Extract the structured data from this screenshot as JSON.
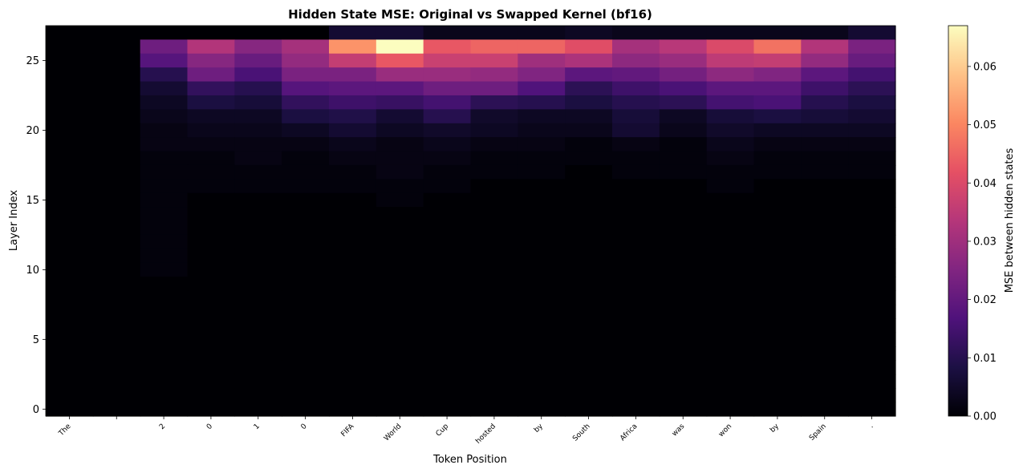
{
  "chart_data": {
    "type": "heatmap",
    "title": "Hidden State MSE: Original vs Swapped Kernel (bf16)",
    "xlabel": "Token Position",
    "ylabel": "Layer Index",
    "x_tokens": [
      "The",
      " ",
      "2",
      "0",
      "1",
      "0",
      "FIFA",
      "World",
      "Cup",
      "hosted",
      "by",
      "South",
      "Africa",
      "was",
      "won",
      "by",
      "Spain",
      "."
    ],
    "y_ticks": [
      "0",
      "5",
      "10",
      "15",
      "20",
      "25"
    ],
    "n_layers": 28,
    "colormap": "magma",
    "colorbar": {
      "label": "MSE between hidden states",
      "vmin": 0.0,
      "vmax": 0.067,
      "ticks": [
        "0.00",
        "0.01",
        "0.02",
        "0.03",
        "0.04",
        "0.05",
        "0.06"
      ]
    },
    "values_by_layer_top_down": [
      [
        0.0,
        0.0,
        0.0,
        0.0,
        0.0,
        0.0,
        0.006,
        0.006,
        0.003,
        0.003,
        0.003,
        0.004,
        0.003,
        0.003,
        0.003,
        0.003,
        0.003,
        0.006
      ],
      [
        0.0,
        0.0,
        0.022,
        0.033,
        0.026,
        0.031,
        0.052,
        0.067,
        0.043,
        0.045,
        0.045,
        0.041,
        0.031,
        0.034,
        0.04,
        0.047,
        0.033,
        0.024
      ],
      [
        0.0,
        0.0,
        0.018,
        0.026,
        0.021,
        0.028,
        0.036,
        0.043,
        0.037,
        0.037,
        0.03,
        0.032,
        0.027,
        0.029,
        0.035,
        0.036,
        0.028,
        0.021
      ],
      [
        0.0,
        0.0,
        0.01,
        0.022,
        0.016,
        0.024,
        0.024,
        0.029,
        0.029,
        0.028,
        0.025,
        0.019,
        0.02,
        0.023,
        0.027,
        0.025,
        0.019,
        0.015
      ],
      [
        0.0,
        0.0,
        0.006,
        0.012,
        0.01,
        0.018,
        0.019,
        0.019,
        0.022,
        0.022,
        0.017,
        0.011,
        0.014,
        0.016,
        0.019,
        0.019,
        0.014,
        0.011
      ],
      [
        0.0,
        0.0,
        0.004,
        0.008,
        0.007,
        0.012,
        0.014,
        0.013,
        0.015,
        0.011,
        0.01,
        0.008,
        0.01,
        0.011,
        0.015,
        0.016,
        0.01,
        0.008
      ],
      [
        0.0,
        0.0,
        0.003,
        0.004,
        0.004,
        0.008,
        0.009,
        0.006,
        0.01,
        0.005,
        0.004,
        0.004,
        0.007,
        0.004,
        0.007,
        0.008,
        0.007,
        0.006
      ],
      [
        0.0,
        0.0,
        0.002,
        0.003,
        0.003,
        0.004,
        0.006,
        0.004,
        0.005,
        0.004,
        0.003,
        0.003,
        0.006,
        0.003,
        0.005,
        0.004,
        0.004,
        0.004
      ],
      [
        0.0,
        0.0,
        0.002,
        0.002,
        0.002,
        0.002,
        0.003,
        0.002,
        0.003,
        0.002,
        0.002,
        0.001,
        0.002,
        0.001,
        0.003,
        0.002,
        0.002,
        0.002
      ],
      [
        0.0,
        0.0,
        0.001,
        0.001,
        0.002,
        0.001,
        0.002,
        0.002,
        0.002,
        0.001,
        0.001,
        0.001,
        0.001,
        0.001,
        0.002,
        0.001,
        0.001,
        0.001
      ],
      [
        0.0,
        0.0,
        0.001,
        0.001,
        0.001,
        0.001,
        0.001,
        0.002,
        0.001,
        0.001,
        0.001,
        0.0,
        0.001,
        0.001,
        0.001,
        0.001,
        0.001,
        0.001
      ],
      [
        0.0,
        0.0,
        0.001,
        0.001,
        0.001,
        0.001,
        0.001,
        0.001,
        0.001,
        0.0,
        0.0,
        0.0,
        0.0,
        0.0,
        0.001,
        0.0,
        0.0,
        0.0
      ],
      [
        0.0,
        0.0,
        0.001,
        0.0,
        0.0,
        0.0,
        0.0,
        0.001,
        0.0,
        0.0,
        0.0,
        0.0,
        0.0,
        0.0,
        0.0,
        0.0,
        0.0,
        0.0
      ],
      [
        0.0,
        0.0,
        0.001,
        0.0,
        0.0,
        0.0,
        0.0,
        0.0,
        0.0,
        0.0,
        0.0,
        0.0,
        0.0,
        0.0,
        0.0,
        0.0,
        0.0,
        0.0
      ],
      [
        0.0,
        0.0,
        0.001,
        0.0,
        0.0,
        0.0,
        0.0,
        0.0,
        0.0,
        0.0,
        0.0,
        0.0,
        0.0,
        0.0,
        0.0,
        0.0,
        0.0,
        0.0
      ],
      [
        0.0,
        0.0,
        0.001,
        0.0,
        0.0,
        0.0,
        0.0,
        0.0,
        0.0,
        0.0,
        0.0,
        0.0,
        0.0,
        0.0,
        0.0,
        0.0,
        0.0,
        0.0
      ],
      [
        0.0,
        0.0,
        0.001,
        0.0,
        0.0,
        0.0,
        0.0,
        0.0,
        0.0,
        0.0,
        0.0,
        0.0,
        0.0,
        0.0,
        0.0,
        0.0,
        0.0,
        0.0
      ],
      [
        0.0,
        0.0,
        0.001,
        0.0,
        0.0,
        0.0,
        0.0,
        0.0,
        0.0,
        0.0,
        0.0,
        0.0,
        0.0,
        0.0,
        0.0,
        0.0,
        0.0,
        0.0
      ],
      [
        0.0,
        0.0,
        0.0,
        0.0,
        0.0,
        0.0,
        0.0,
        0.0,
        0.0,
        0.0,
        0.0,
        0.0,
        0.0,
        0.0,
        0.0,
        0.0,
        0.0,
        0.0
      ],
      [
        0.0,
        0.0,
        0.0,
        0.0,
        0.0,
        0.0,
        0.0,
        0.0,
        0.0,
        0.0,
        0.0,
        0.0,
        0.0,
        0.0,
        0.0,
        0.0,
        0.0,
        0.0
      ],
      [
        0.0,
        0.0,
        0.0,
        0.0,
        0.0,
        0.0,
        0.0,
        0.0,
        0.0,
        0.0,
        0.0,
        0.0,
        0.0,
        0.0,
        0.0,
        0.0,
        0.0,
        0.0
      ],
      [
        0.0,
        0.0,
        0.0,
        0.0,
        0.0,
        0.0,
        0.0,
        0.0,
        0.0,
        0.0,
        0.0,
        0.0,
        0.0,
        0.0,
        0.0,
        0.0,
        0.0,
        0.0
      ],
      [
        0.0,
        0.0,
        0.0,
        0.0,
        0.0,
        0.0,
        0.0,
        0.0,
        0.0,
        0.0,
        0.0,
        0.0,
        0.0,
        0.0,
        0.0,
        0.0,
        0.0,
        0.0
      ],
      [
        0.0,
        0.0,
        0.0,
        0.0,
        0.0,
        0.0,
        0.0,
        0.0,
        0.0,
        0.0,
        0.0,
        0.0,
        0.0,
        0.0,
        0.0,
        0.0,
        0.0,
        0.0
      ],
      [
        0.0,
        0.0,
        0.0,
        0.0,
        0.0,
        0.0,
        0.0,
        0.0,
        0.0,
        0.0,
        0.0,
        0.0,
        0.0,
        0.0,
        0.0,
        0.0,
        0.0,
        0.0
      ],
      [
        0.0,
        0.0,
        0.0,
        0.0,
        0.0,
        0.0,
        0.0,
        0.0,
        0.0,
        0.0,
        0.0,
        0.0,
        0.0,
        0.0,
        0.0,
        0.0,
        0.0,
        0.0
      ],
      [
        0.0,
        0.0,
        0.0,
        0.0,
        0.0,
        0.0,
        0.0,
        0.0,
        0.0,
        0.0,
        0.0,
        0.0,
        0.0,
        0.0,
        0.0,
        0.0,
        0.0,
        0.0
      ],
      [
        0.0,
        0.0,
        0.0,
        0.0,
        0.0,
        0.0,
        0.0,
        0.0,
        0.0,
        0.0,
        0.0,
        0.0,
        0.0,
        0.0,
        0.0,
        0.0,
        0.0,
        0.0
      ]
    ]
  }
}
